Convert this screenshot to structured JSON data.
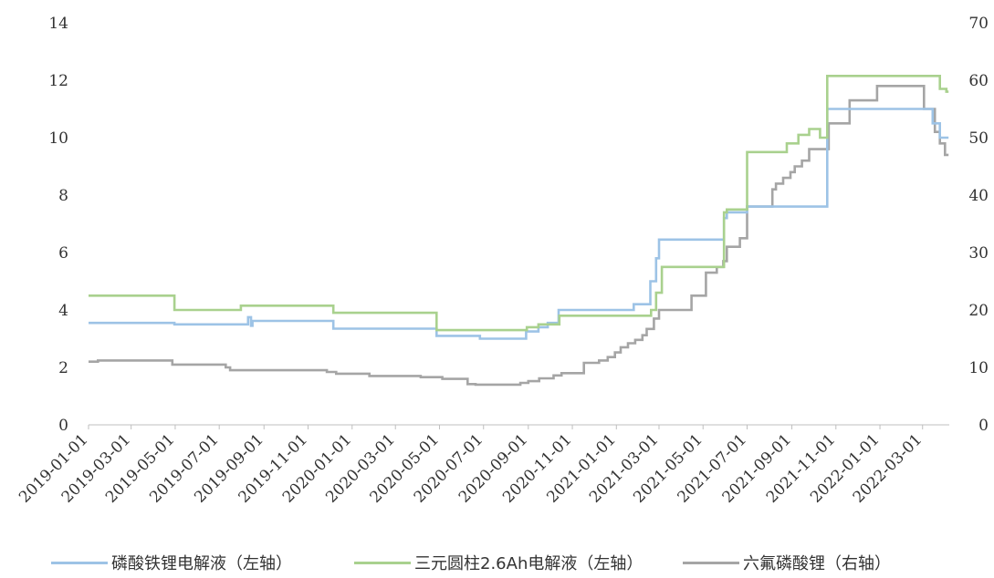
{
  "chart_data": {
    "type": "line",
    "title": "",
    "xlabel": "",
    "ylabel_left": "",
    "ylabel_right": "",
    "ylim_left": [
      0,
      14
    ],
    "ylim_right": [
      0,
      70
    ],
    "yticks_left": [
      "0",
      "2",
      "4",
      "6",
      "8",
      "10",
      "12",
      "14"
    ],
    "yticks_right": [
      "0",
      "10",
      "20",
      "30",
      "40",
      "50",
      "60",
      "70"
    ],
    "xlim": [
      "2019-01-01",
      "2022-04-07"
    ],
    "xticks": [
      "2019-01-01",
      "2019-03-01",
      "2019-05-01",
      "2019-07-01",
      "2019-09-01",
      "2019-11-01",
      "2020-01-01",
      "2020-03-01",
      "2020-05-01",
      "2020-07-01",
      "2020-09-01",
      "2020-11-01",
      "2021-01-01",
      "2021-03-01",
      "2021-05-01",
      "2021-07-01",
      "2021-09-01",
      "2021-11-01",
      "2022-01-01",
      "2022-03-01"
    ],
    "grid": false,
    "legend_position": "bottom",
    "series": [
      {
        "name": "磷酸铁锂电解液（左轴）",
        "axis": "left",
        "color": "#9DC3E6",
        "points": [
          [
            "2019-01-01",
            3.55
          ],
          [
            "2019-04-30",
            3.55
          ],
          [
            "2019-04-30",
            3.5
          ],
          [
            "2019-08-10",
            3.5
          ],
          [
            "2019-08-10",
            3.75
          ],
          [
            "2019-08-14",
            3.75
          ],
          [
            "2019-08-14",
            3.45
          ],
          [
            "2019-08-16",
            3.45
          ],
          [
            "2019-08-16",
            3.62
          ],
          [
            "2019-12-06",
            3.62
          ],
          [
            "2019-12-06",
            3.35
          ],
          [
            "2020-04-27",
            3.35
          ],
          [
            "2020-04-27",
            3.1
          ],
          [
            "2020-06-26",
            3.1
          ],
          [
            "2020-06-26",
            3.0
          ],
          [
            "2020-08-29",
            3.0
          ],
          [
            "2020-08-29",
            3.25
          ],
          [
            "2020-09-15",
            3.25
          ],
          [
            "2020-09-15",
            3.4
          ],
          [
            "2020-09-28",
            3.4
          ],
          [
            "2020-09-28",
            3.55
          ],
          [
            "2020-10-13",
            3.55
          ],
          [
            "2020-10-13",
            4.0
          ],
          [
            "2021-01-25",
            4.0
          ],
          [
            "2021-01-25",
            4.2
          ],
          [
            "2021-02-17",
            4.2
          ],
          [
            "2021-02-17",
            5.0
          ],
          [
            "2021-02-25",
            5.0
          ],
          [
            "2021-02-25",
            5.8
          ],
          [
            "2021-03-01",
            5.8
          ],
          [
            "2021-03-01",
            6.45
          ],
          [
            "2021-05-30",
            6.45
          ],
          [
            "2021-05-30",
            7.2
          ],
          [
            "2021-06-03",
            7.2
          ],
          [
            "2021-06-03",
            7.4
          ],
          [
            "2021-07-01",
            7.4
          ],
          [
            "2021-07-01",
            7.6
          ],
          [
            "2021-10-20",
            7.6
          ],
          [
            "2021-10-20",
            11.0
          ],
          [
            "2022-03-15",
            11.0
          ],
          [
            "2022-03-15",
            10.5
          ],
          [
            "2022-03-25",
            10.5
          ],
          [
            "2022-03-25",
            10.0
          ],
          [
            "2022-04-06",
            10.0
          ]
        ]
      },
      {
        "name": "三元圆柱2.6Ah电解液（左轴）",
        "axis": "left",
        "color": "#A9D18E",
        "points": [
          [
            "2019-01-01",
            4.5
          ],
          [
            "2019-04-30",
            4.5
          ],
          [
            "2019-04-30",
            4.0
          ],
          [
            "2019-07-31",
            4.0
          ],
          [
            "2019-07-31",
            4.15
          ],
          [
            "2019-12-06",
            4.15
          ],
          [
            "2019-12-06",
            3.9
          ],
          [
            "2020-04-27",
            3.9
          ],
          [
            "2020-04-27",
            3.3
          ],
          [
            "2020-08-30",
            3.3
          ],
          [
            "2020-08-30",
            3.4
          ],
          [
            "2020-09-15",
            3.4
          ],
          [
            "2020-09-15",
            3.5
          ],
          [
            "2020-10-14",
            3.5
          ],
          [
            "2020-10-14",
            3.8
          ],
          [
            "2021-02-18",
            3.8
          ],
          [
            "2021-02-18",
            4.0
          ],
          [
            "2021-02-25",
            4.0
          ],
          [
            "2021-02-25",
            4.6
          ],
          [
            "2021-03-05",
            4.6
          ],
          [
            "2021-03-05",
            5.5
          ],
          [
            "2021-05-30",
            5.5
          ],
          [
            "2021-05-30",
            7.4
          ],
          [
            "2021-06-03",
            7.4
          ],
          [
            "2021-06-03",
            7.5
          ],
          [
            "2021-07-01",
            7.5
          ],
          [
            "2021-07-01",
            9.5
          ],
          [
            "2021-08-25",
            9.5
          ],
          [
            "2021-08-25",
            9.8
          ],
          [
            "2021-09-10",
            9.8
          ],
          [
            "2021-09-10",
            10.1
          ],
          [
            "2021-09-25",
            10.1
          ],
          [
            "2021-09-25",
            10.3
          ],
          [
            "2021-10-10",
            10.3
          ],
          [
            "2021-10-10",
            10.0
          ],
          [
            "2021-10-20",
            10.0
          ],
          [
            "2021-10-20",
            12.15
          ],
          [
            "2022-03-25",
            12.15
          ],
          [
            "2022-03-25",
            11.7
          ],
          [
            "2022-04-03",
            11.7
          ],
          [
            "2022-04-03",
            11.6
          ],
          [
            "2022-04-06",
            11.6
          ]
        ]
      },
      {
        "name": "六氟磷酸锂（右轴）",
        "axis": "right",
        "color": "#A5A5A5",
        "points": [
          [
            "2019-01-01",
            11.0
          ],
          [
            "2019-01-14",
            11.0
          ],
          [
            "2019-01-14",
            11.2
          ],
          [
            "2019-04-27",
            11.2
          ],
          [
            "2019-04-27",
            10.5
          ],
          [
            "2019-07-10",
            10.5
          ],
          [
            "2019-07-10",
            10.0
          ],
          [
            "2019-07-16",
            10.0
          ],
          [
            "2019-07-16",
            9.5
          ],
          [
            "2019-11-27",
            9.5
          ],
          [
            "2019-11-27",
            9.2
          ],
          [
            "2019-12-10",
            9.2
          ],
          [
            "2019-12-10",
            8.9
          ],
          [
            "2020-01-25",
            8.9
          ],
          [
            "2020-01-25",
            8.5
          ],
          [
            "2020-04-05",
            8.5
          ],
          [
            "2020-04-05",
            8.3
          ],
          [
            "2020-05-05",
            8.3
          ],
          [
            "2020-05-05",
            8.0
          ],
          [
            "2020-06-09",
            8.0
          ],
          [
            "2020-06-09",
            7.1
          ],
          [
            "2020-06-20",
            7.1
          ],
          [
            "2020-06-20",
            7.0
          ],
          [
            "2020-08-21",
            7.0
          ],
          [
            "2020-08-21",
            7.3
          ],
          [
            "2020-09-01",
            7.3
          ],
          [
            "2020-09-01",
            7.6
          ],
          [
            "2020-09-16",
            7.6
          ],
          [
            "2020-09-16",
            8.1
          ],
          [
            "2020-10-06",
            8.1
          ],
          [
            "2020-10-06",
            8.6
          ],
          [
            "2020-10-17",
            8.6
          ],
          [
            "2020-10-17",
            9.0
          ],
          [
            "2020-11-17",
            9.0
          ],
          [
            "2020-11-17",
            10.8
          ],
          [
            "2020-12-08",
            10.8
          ],
          [
            "2020-12-08",
            11.2
          ],
          [
            "2020-12-20",
            11.2
          ],
          [
            "2020-12-20",
            11.8
          ],
          [
            "2020-12-30",
            11.8
          ],
          [
            "2020-12-30",
            12.6
          ],
          [
            "2021-01-07",
            12.6
          ],
          [
            "2021-01-07",
            13.5
          ],
          [
            "2021-01-17",
            13.5
          ],
          [
            "2021-01-17",
            14.2
          ],
          [
            "2021-01-27",
            14.2
          ],
          [
            "2021-01-27",
            14.8
          ],
          [
            "2021-02-06",
            14.8
          ],
          [
            "2021-02-06",
            15.6
          ],
          [
            "2021-02-12",
            15.6
          ],
          [
            "2021-02-12",
            16.7
          ],
          [
            "2021-02-22",
            16.7
          ],
          [
            "2021-02-22",
            18.5
          ],
          [
            "2021-03-01",
            18.5
          ],
          [
            "2021-03-01",
            20.0
          ],
          [
            "2021-04-15",
            20.0
          ],
          [
            "2021-04-15",
            22.5
          ],
          [
            "2021-05-05",
            22.5
          ],
          [
            "2021-05-05",
            26.5
          ],
          [
            "2021-05-20",
            26.5
          ],
          [
            "2021-05-20",
            27.5
          ],
          [
            "2021-05-29",
            27.5
          ],
          [
            "2021-05-29",
            28.5
          ],
          [
            "2021-06-03",
            28.5
          ],
          [
            "2021-06-03",
            31.0
          ],
          [
            "2021-06-21",
            31.0
          ],
          [
            "2021-06-21",
            32.5
          ],
          [
            "2021-07-01",
            32.5
          ],
          [
            "2021-07-01",
            38.0
          ],
          [
            "2021-08-05",
            38.0
          ],
          [
            "2021-08-05",
            41.0
          ],
          [
            "2021-08-10",
            41.0
          ],
          [
            "2021-08-10",
            42.0
          ],
          [
            "2021-08-20",
            42.0
          ],
          [
            "2021-08-20",
            43.0
          ],
          [
            "2021-08-30",
            43.0
          ],
          [
            "2021-08-30",
            44.0
          ],
          [
            "2021-09-05",
            44.0
          ],
          [
            "2021-09-05",
            45.0
          ],
          [
            "2021-09-15",
            45.0
          ],
          [
            "2021-09-15",
            46.0
          ],
          [
            "2021-09-25",
            46.0
          ],
          [
            "2021-09-25",
            48.0
          ],
          [
            "2021-10-22",
            48.0
          ],
          [
            "2021-10-22",
            52.5
          ],
          [
            "2021-11-20",
            52.5
          ],
          [
            "2021-11-20",
            56.5
          ],
          [
            "2021-12-28",
            56.5
          ],
          [
            "2021-12-28",
            59.0
          ],
          [
            "2022-03-03",
            59.0
          ],
          [
            "2022-03-03",
            55.0
          ],
          [
            "2022-03-18",
            55.0
          ],
          [
            "2022-03-18",
            51.0
          ],
          [
            "2022-03-25",
            51.0
          ],
          [
            "2022-03-25",
            49.0
          ],
          [
            "2022-04-01",
            49.0
          ],
          [
            "2022-04-01",
            47.0
          ],
          [
            "2022-04-06",
            47.0
          ]
        ]
      }
    ]
  }
}
